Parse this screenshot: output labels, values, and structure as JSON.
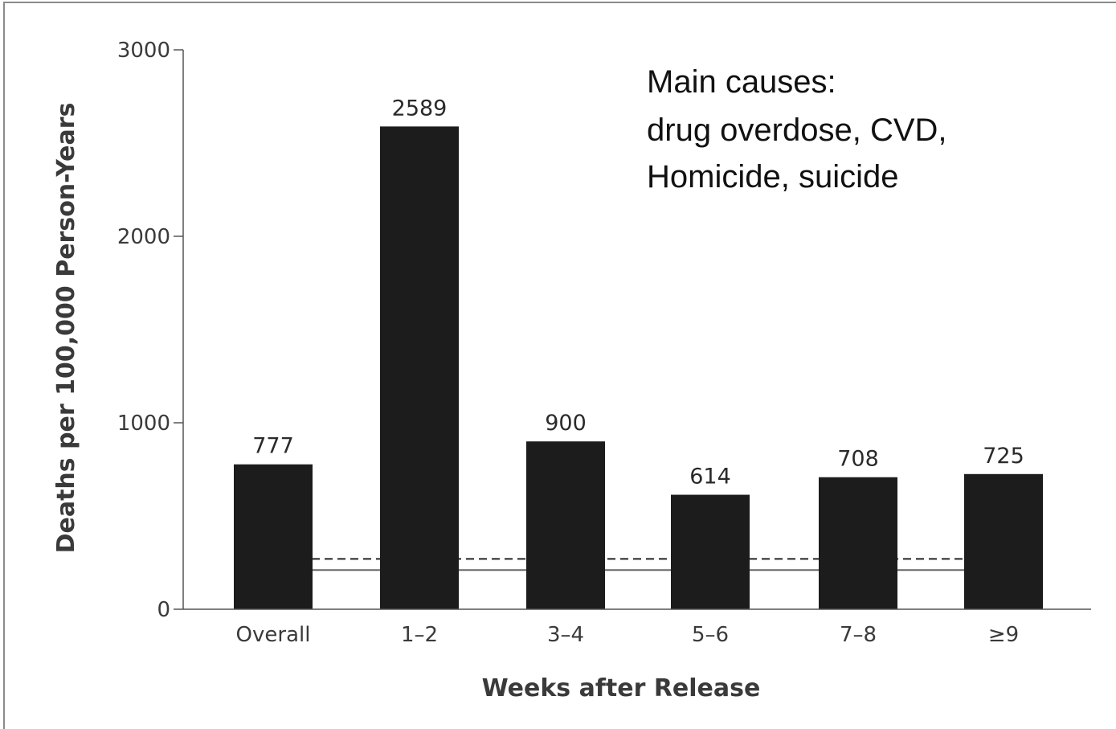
{
  "chart_data": {
    "type": "bar",
    "title": "",
    "xlabel": "Weeks after Release",
    "ylabel": "Deaths per 100,000 Person-Years",
    "categories": [
      "Overall",
      "1–2",
      "3–4",
      "5–6",
      "7–8",
      "≥9"
    ],
    "values": [
      777,
      2589,
      900,
      614,
      708,
      725
    ],
    "value_labels": [
      "777",
      "2589",
      "900",
      "614",
      "708",
      "725"
    ],
    "ylim": [
      0,
      3000
    ],
    "yticks": [
      0,
      1000,
      2000,
      3000
    ],
    "ytick_labels": [
      "0",
      "1000",
      "2000",
      "3000"
    ],
    "reference_lines": [
      {
        "style": "dashed",
        "value": 270
      },
      {
        "style": "solid",
        "value": 210
      }
    ],
    "grid": false,
    "bar_color": "#1c1c1c",
    "annotation": [
      "Main causes:",
      "drug overdose, CVD,",
      "Homicide, suicide"
    ]
  }
}
